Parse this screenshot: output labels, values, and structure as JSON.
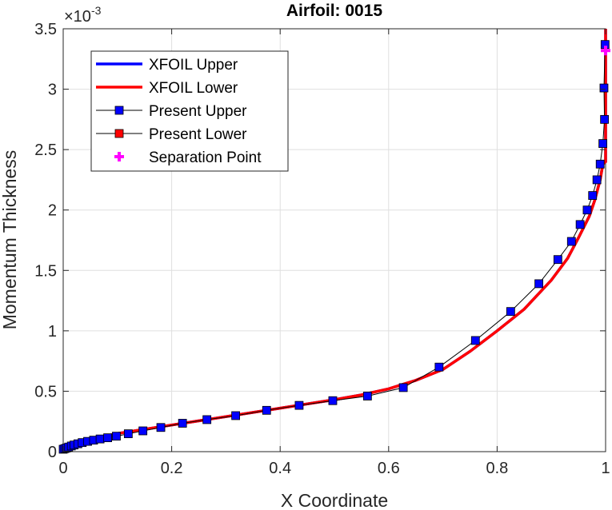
{
  "chart_data": {
    "type": "line",
    "title": "Airfoil: 0015",
    "xlabel": "X Coordinate",
    "ylabel": "Momentum Thickness",
    "xlim": [
      0,
      1
    ],
    "ylim": [
      0,
      0.0035
    ],
    "y_exponent_base": "×10",
    "y_exponent_power": "-3",
    "grid": true,
    "legend_position": "top-left",
    "x_ticks": [
      0,
      0.2,
      0.4,
      0.6,
      0.8,
      1
    ],
    "x_tick_labels": [
      "0",
      "0.2",
      "0.4",
      "0.6",
      "0.8",
      "1"
    ],
    "y_ticks": [
      0,
      0.0005,
      0.001,
      0.0015,
      0.002,
      0.0025,
      0.003,
      0.0035
    ],
    "y_tick_labels": [
      "0",
      "0.5",
      "1",
      "1.5",
      "2",
      "2.5",
      "3",
      "3.5"
    ],
    "series": [
      {
        "name": "XFOIL Upper",
        "color": "#0000ff",
        "style": "line",
        "x": [
          0,
          0.005,
          0.02,
          0.05,
          0.1,
          0.2,
          0.3,
          0.4,
          0.5,
          0.55,
          0.6,
          0.65,
          0.7,
          0.75,
          0.8,
          0.85,
          0.9,
          0.93,
          0.95,
          0.97,
          0.98,
          0.99,
          0.995,
          1.0,
          1.0
        ],
        "y": [
          1e-05,
          3e-05,
          6e-05,
          0.0001,
          0.00015,
          0.00022,
          0.00029,
          0.00036,
          0.00043,
          0.00047,
          0.00052,
          0.00059,
          0.00068,
          0.00083,
          0.001,
          0.00118,
          0.00142,
          0.0016,
          0.00177,
          0.00195,
          0.00208,
          0.00225,
          0.00238,
          0.0024,
          0.0035
        ]
      },
      {
        "name": "XFOIL Lower",
        "color": "#ff0000",
        "style": "line",
        "x": [
          0,
          0.005,
          0.02,
          0.05,
          0.1,
          0.2,
          0.3,
          0.4,
          0.5,
          0.55,
          0.6,
          0.65,
          0.7,
          0.75,
          0.8,
          0.85,
          0.9,
          0.93,
          0.95,
          0.97,
          0.98,
          0.99,
          0.995,
          1.0,
          1.0
        ],
        "y": [
          1e-05,
          3e-05,
          6e-05,
          0.0001,
          0.00015,
          0.00022,
          0.00029,
          0.00036,
          0.00043,
          0.00047,
          0.00052,
          0.00059,
          0.00068,
          0.00083,
          0.001,
          0.00118,
          0.00142,
          0.0016,
          0.00177,
          0.00195,
          0.00208,
          0.00225,
          0.00238,
          0.0024,
          0.0035
        ]
      },
      {
        "name": "Present Upper",
        "color": "#0000ff",
        "style": "line-square",
        "x": [
          0.0,
          0.003,
          0.006,
          0.01,
          0.015,
          0.02,
          0.027,
          0.035,
          0.045,
          0.056,
          0.068,
          0.082,
          0.098,
          0.12,
          0.147,
          0.18,
          0.22,
          0.265,
          0.318,
          0.375,
          0.435,
          0.497,
          0.561,
          0.627,
          0.693,
          0.76,
          0.825,
          0.877,
          0.912,
          0.937,
          0.953,
          0.966,
          0.976,
          0.984,
          0.99,
          0.995,
          0.998
        ],
        "y": [
          2e-05,
          2.5e-05,
          3e-05,
          3.8e-05,
          4.7e-05,
          5.5e-05,
          6.5e-05,
          7.5e-05,
          8.5e-05,
          9.5e-05,
          0.000105,
          0.000115,
          0.000128,
          0.000148,
          0.000172,
          0.0002,
          0.000235,
          0.000265,
          0.000298,
          0.000342,
          0.000383,
          0.000422,
          0.00046,
          0.00053,
          0.0007,
          0.00092,
          0.00116,
          0.00139,
          0.00159,
          0.00174,
          0.00188,
          0.002,
          0.00212,
          0.00225,
          0.00238,
          0.00255,
          0.00275
        ]
      },
      {
        "name": "Present Lower",
        "color": "#ff0000",
        "style": "line-square",
        "x": [],
        "y": []
      },
      {
        "name": "Separation Point",
        "color": "#ff00ff",
        "style": "plus",
        "x": [
          1.0
        ],
        "y": [
          0.00332
        ]
      }
    ],
    "present_upper_tail": {
      "x": [
        0.997,
        0.999
      ],
      "y": [
        0.00301,
        0.00337
      ]
    }
  }
}
